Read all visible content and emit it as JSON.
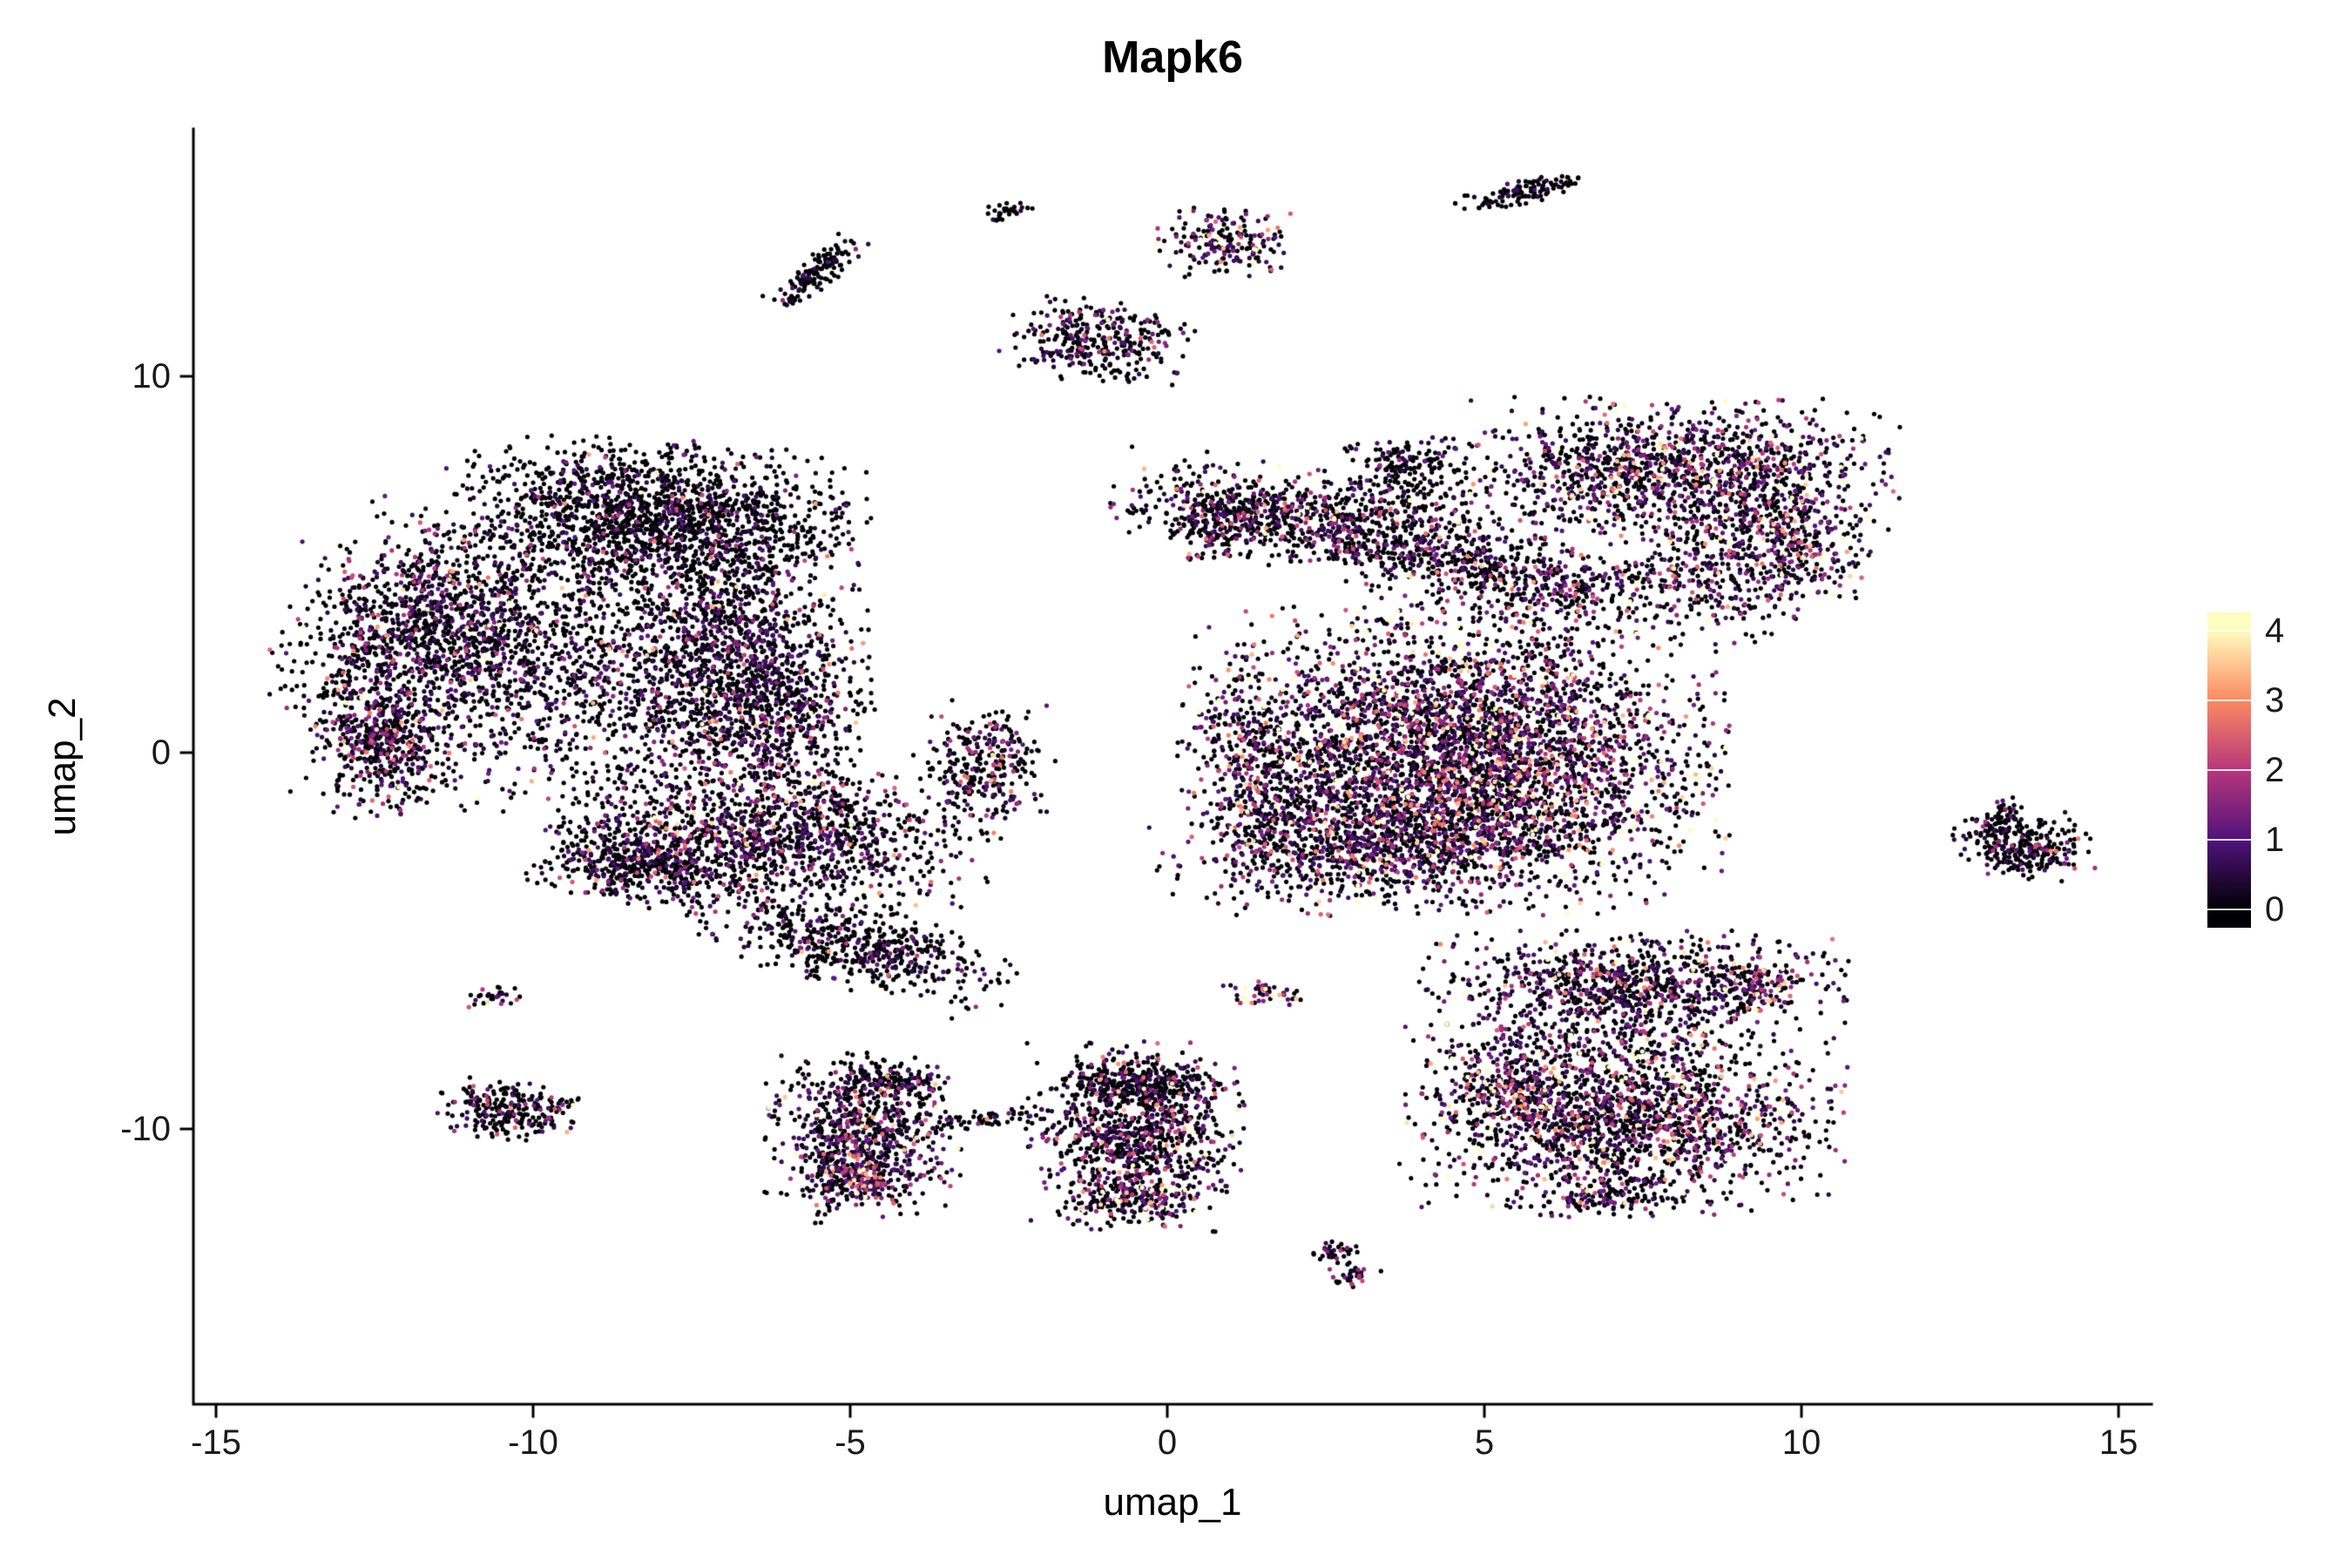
{
  "chart_data": {
    "type": "scatter",
    "title": "Mapk6",
    "xlabel": "umap_1",
    "ylabel": "umap_2",
    "xlim": [
      -16.4,
      16.4
    ],
    "ylim": [
      -17.3,
      16.6
    ],
    "x_ticks": [
      -15,
      -10,
      -5,
      0,
      5,
      10,
      15
    ],
    "y_ticks": [
      -10,
      0,
      10
    ],
    "grid": false,
    "background": "#ffffff",
    "axis_color": "#000000",
    "legend_position": "right",
    "color_mapping": "Mapk6 expression level",
    "colorbar": {
      "values": [
        0,
        1,
        2,
        3,
        4
      ],
      "labels": [
        "0",
        "1",
        "2",
        "3",
        "4"
      ],
      "colors": [
        "#000004",
        "#51127c",
        "#b73779",
        "#fc8961",
        "#fcfdbf"
      ]
    },
    "point_radius_px": 2.6,
    "clusters": [
      {
        "name": "left-main-top",
        "n": 1600,
        "cx": -8.1,
        "cy": 6.3,
        "sx": 1.5,
        "sy": 0.9,
        "rot": -5,
        "p0": 0.72,
        "emean": 0.7
      },
      {
        "name": "left-main-west-edge",
        "n": 1100,
        "cx": -11.6,
        "cy": 3.4,
        "sx": 1.0,
        "sy": 1.3,
        "rot": -20,
        "p0": 0.58,
        "emean": 0.8
      },
      {
        "name": "left-main-interior",
        "n": 1100,
        "cx": -9.6,
        "cy": 2.2,
        "sx": 1.9,
        "sy": 1.7,
        "rot": 0,
        "p0": 0.55,
        "emean": 0.8
      },
      {
        "name": "left-main-east",
        "n": 900,
        "cx": -7.0,
        "cy": 3.3,
        "sx": 1.0,
        "sy": 1.6,
        "rot": 0,
        "p0": 0.6,
        "emean": 0.8
      },
      {
        "name": "left-main-east-edge",
        "n": 700,
        "cx": -6.4,
        "cy": 1.0,
        "sx": 0.8,
        "sy": 1.3,
        "rot": 0,
        "p0": 0.55,
        "emean": 0.9
      },
      {
        "name": "left-main-southwest",
        "n": 500,
        "cx": -12.4,
        "cy": 0.3,
        "sx": 0.5,
        "sy": 0.9,
        "rot": 10,
        "p0": 0.5,
        "emean": 0.9
      },
      {
        "name": "left-lower",
        "n": 1300,
        "cx": -6.3,
        "cy": -2.2,
        "sx": 1.6,
        "sy": 0.95,
        "rot": -8,
        "p0": 0.55,
        "emean": 0.9
      },
      {
        "name": "left-lower-tail",
        "n": 400,
        "cx": -8.3,
        "cy": -2.9,
        "sx": 0.7,
        "sy": 0.5,
        "rot": -20,
        "p0": 0.6,
        "emean": 0.7
      },
      {
        "name": "small-center-left",
        "n": 280,
        "cx": -2.9,
        "cy": -0.3,
        "sx": 0.5,
        "sy": 0.75,
        "rot": 0,
        "p0": 0.5,
        "emean": 0.9
      },
      {
        "name": "hook-tail",
        "n": 550,
        "cx": -4.9,
        "cy": -5.1,
        "sx": 1.2,
        "sy": 0.5,
        "rot": -25,
        "p0": 0.65,
        "emean": 0.7
      },
      {
        "name": "streak-top-left",
        "n": 130,
        "cx": -5.5,
        "cy": 12.8,
        "sx": 0.5,
        "sy": 0.15,
        "rot": 55,
        "p0": 0.8,
        "emean": 0.5
      },
      {
        "name": "dot-top-left",
        "n": 30,
        "cx": -2.5,
        "cy": 14.4,
        "sx": 0.2,
        "sy": 0.12,
        "rot": 30,
        "p0": 0.8,
        "emean": 0.5
      },
      {
        "name": "top-center",
        "n": 320,
        "cx": -1.1,
        "cy": 10.9,
        "sx": 0.65,
        "sy": 0.5,
        "rot": -10,
        "p0": 0.55,
        "emean": 0.9
      },
      {
        "name": "top-center-right",
        "n": 190,
        "cx": 0.9,
        "cy": 13.6,
        "sx": 0.5,
        "sy": 0.45,
        "rot": 0,
        "p0": 0.45,
        "emean": 1.4
      },
      {
        "name": "streak-top-right",
        "n": 110,
        "cx": 5.6,
        "cy": 14.9,
        "sx": 0.5,
        "sy": 0.14,
        "rot": 20,
        "p0": 0.8,
        "emean": 0.5
      },
      {
        "name": "dot-upper-mid",
        "n": 170,
        "cx": 3.8,
        "cy": 7.6,
        "sx": 0.45,
        "sy": 0.4,
        "rot": 0,
        "p0": 0.7,
        "emean": 0.6
      },
      {
        "name": "right-top-lobe",
        "n": 1300,
        "cx": 8.0,
        "cy": 7.5,
        "sx": 1.55,
        "sy": 0.85,
        "rot": 0,
        "p0": 0.45,
        "emean": 1.1
      },
      {
        "name": "right-top-lobe-east",
        "n": 350,
        "cx": 9.8,
        "cy": 5.7,
        "sx": 0.55,
        "sy": 0.85,
        "rot": 30,
        "p0": 0.4,
        "emean": 1.3
      },
      {
        "name": "upper-band-west",
        "n": 850,
        "cx": 2.6,
        "cy": 6.1,
        "sx": 1.6,
        "sy": 0.6,
        "rot": -14,
        "p0": 0.55,
        "emean": 0.9
      },
      {
        "name": "upper-band-east",
        "n": 550,
        "cx": 5.6,
        "cy": 4.6,
        "sx": 1.3,
        "sy": 0.55,
        "rot": -14,
        "p0": 0.52,
        "emean": 1.0
      },
      {
        "name": "band-west-clump",
        "n": 200,
        "cx": 0.9,
        "cy": 6.2,
        "sx": 0.45,
        "sy": 0.5,
        "rot": 0,
        "p0": 0.55,
        "emean": 0.9
      },
      {
        "name": "right-neck",
        "n": 300,
        "cx": 8.6,
        "cy": 4.6,
        "sx": 0.8,
        "sy": 0.7,
        "rot": -30,
        "p0": 0.45,
        "emean": 1.2
      },
      {
        "name": "right-central-mass",
        "n": 4200,
        "cx": 4.5,
        "cy": -0.2,
        "sx": 1.9,
        "sy": 1.8,
        "rot": 0,
        "p0": 0.42,
        "emean": 1.2
      },
      {
        "name": "right-central-south",
        "n": 650,
        "cx": 3.2,
        "cy": -2.5,
        "sx": 1.5,
        "sy": 0.6,
        "rot": 8,
        "p0": 0.5,
        "emean": 1.0
      },
      {
        "name": "right-central-west-edge",
        "n": 280,
        "cx": 1.4,
        "cy": -0.6,
        "sx": 0.4,
        "sy": 1.3,
        "rot": 8,
        "p0": 0.5,
        "emean": 1.0
      },
      {
        "name": "far-right",
        "n": 260,
        "cx": 13.5,
        "cy": -2.5,
        "sx": 0.5,
        "sy": 0.4,
        "rot": 0,
        "p0": 0.7,
        "emean": 0.7
      },
      {
        "name": "far-right-tail",
        "n": 60,
        "cx": 13.1,
        "cy": -1.8,
        "sx": 0.3,
        "sy": 0.15,
        "rot": 55,
        "p0": 0.7,
        "emean": 0.6
      },
      {
        "name": "bottom-right-upper",
        "n": 950,
        "cx": 7.3,
        "cy": -6.2,
        "sx": 1.5,
        "sy": 0.65,
        "rot": 0,
        "p0": 0.5,
        "emean": 1.0
      },
      {
        "name": "bottom-right-upper-east",
        "n": 80,
        "cx": 9.3,
        "cy": -6.2,
        "sx": 0.3,
        "sy": 0.3,
        "rot": 0,
        "p0": 0.25,
        "emean": 1.8
      },
      {
        "name": "bottom-right-lower",
        "n": 1700,
        "cx": 7.2,
        "cy": -9.7,
        "sx": 1.55,
        "sy": 1.15,
        "rot": 0,
        "p0": 0.45,
        "emean": 1.1
      },
      {
        "name": "bottom-right-west-edge",
        "n": 200,
        "cx": 5.3,
        "cy": -9.0,
        "sx": 0.4,
        "sy": 0.6,
        "rot": 0,
        "p0": 0.35,
        "emean": 1.5
      },
      {
        "name": "bottom-right-tail",
        "n": 120,
        "cx": 6.9,
        "cy": -11.7,
        "sx": 0.5,
        "sy": 0.3,
        "rot": 0,
        "p0": 0.5,
        "emean": 1.2
      },
      {
        "name": "bottom-right-bridge",
        "n": 120,
        "cx": 6.6,
        "cy": -7.7,
        "sx": 1.2,
        "sy": 0.35,
        "rot": 0,
        "p0": 0.6,
        "emean": 0.9
      },
      {
        "name": "small-red",
        "n": 45,
        "cx": 1.5,
        "cy": -6.4,
        "sx": 0.28,
        "sy": 0.18,
        "rot": 0,
        "p0": 0.15,
        "emean": 2.2
      },
      {
        "name": "bottom-center",
        "n": 950,
        "cx": -0.5,
        "cy": -10.2,
        "sx": 0.75,
        "sy": 1.1,
        "rot": 0,
        "p0": 0.5,
        "emean": 1.0
      },
      {
        "name": "bottom-center-top",
        "n": 250,
        "cx": -0.5,
        "cy": -8.8,
        "sx": 0.6,
        "sy": 0.3,
        "rot": 0,
        "p0": 0.75,
        "emean": 0.5
      },
      {
        "name": "bottom-center-south",
        "n": 160,
        "cx": -0.6,
        "cy": -11.9,
        "sx": 0.5,
        "sy": 0.3,
        "rot": 0,
        "p0": 0.35,
        "emean": 1.6
      },
      {
        "name": "bottom-left",
        "n": 750,
        "cx": -4.8,
        "cy": -10.2,
        "sx": 0.7,
        "sy": 1.0,
        "rot": 0,
        "p0": 0.5,
        "emean": 1.0
      },
      {
        "name": "bottom-left-top-streak",
        "n": 120,
        "cx": -4.4,
        "cy": -8.7,
        "sx": 0.45,
        "sy": 0.18,
        "rot": -15,
        "p0": 0.7,
        "emean": 0.6
      },
      {
        "name": "bottom-left-south",
        "n": 140,
        "cx": -4.9,
        "cy": -11.4,
        "sx": 0.45,
        "sy": 0.3,
        "rot": 0,
        "p0": 0.35,
        "emean": 1.6
      },
      {
        "name": "bottom-connector",
        "n": 70,
        "cx": -2.7,
        "cy": -9.7,
        "sx": 0.8,
        "sy": 0.15,
        "rot": 5,
        "p0": 0.6,
        "emean": 0.8
      },
      {
        "name": "small-bottom-left",
        "n": 240,
        "cx": -10.4,
        "cy": -9.5,
        "sx": 0.5,
        "sy": 0.35,
        "rot": -10,
        "p0": 0.6,
        "emean": 0.9
      },
      {
        "name": "outlier-dots",
        "n": 8,
        "cx": -9.4,
        "cy": -9.3,
        "sx": 0.15,
        "sy": 0.1,
        "rot": 0,
        "p0": 0.4,
        "emean": 1.5
      },
      {
        "name": "tiny-left",
        "n": 30,
        "cx": -10.6,
        "cy": -6.5,
        "sx": 0.18,
        "sy": 0.14,
        "rot": 0,
        "p0": 0.5,
        "emean": 1.2
      },
      {
        "name": "tiny-bottom-1",
        "n": 35,
        "cx": 2.6,
        "cy": -13.3,
        "sx": 0.2,
        "sy": 0.15,
        "rot": 0,
        "p0": 0.7,
        "emean": 0.8
      },
      {
        "name": "tiny-bottom-2",
        "n": 30,
        "cx": 2.9,
        "cy": -13.9,
        "sx": 0.22,
        "sy": 0.13,
        "rot": 20,
        "p0": 0.55,
        "emean": 1.2
      }
    ]
  }
}
